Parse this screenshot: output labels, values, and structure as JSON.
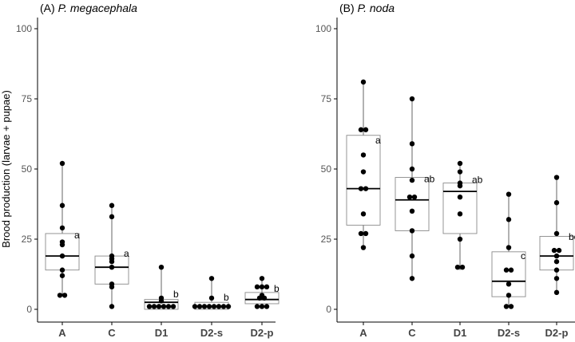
{
  "figure": {
    "ylabel": "Brood production (larvae + pupae)"
  },
  "chart_data": [
    {
      "type": "box",
      "title_prefix": "(A) ",
      "title_species": "P. megacephala",
      "ylabel": "Brood production (larvae + pupae)",
      "xlabel": "",
      "ylim": [
        -3,
        103
      ],
      "yticks": [
        0,
        25,
        50,
        75,
        100
      ],
      "categories": [
        "A",
        "C",
        "D1",
        "D2-s",
        "D2-p"
      ],
      "boxes": [
        {
          "q1": 14,
          "median": 19,
          "q3": 27,
          "low": 5,
          "high": 52,
          "points": [
            52,
            37,
            29,
            24,
            23,
            19,
            14,
            12,
            5,
            5
          ],
          "letter": "a"
        },
        {
          "q1": 9,
          "median": 15,
          "q3": 19,
          "low": 1,
          "high": 37,
          "points": [
            37,
            33,
            19,
            18,
            17,
            15,
            9,
            8,
            1
          ],
          "letter": "a"
        },
        {
          "q1": 0,
          "median": 2.5,
          "q3": 3.5,
          "low": 0,
          "high": 15,
          "points": [
            15,
            4,
            3,
            1,
            1,
            1,
            1,
            1,
            1
          ],
          "letter": "b"
        },
        {
          "q1": 0,
          "median": 1,
          "q3": 2.5,
          "low": 0,
          "high": 11,
          "points": [
            11,
            4,
            1,
            1,
            1,
            1,
            1,
            1,
            1,
            1
          ],
          "letter": "b"
        },
        {
          "q1": 2,
          "median": 3.5,
          "q3": 6,
          "low": 1,
          "high": 11,
          "points": [
            11,
            8,
            8,
            8,
            5,
            4,
            4,
            1,
            1,
            1
          ],
          "letter": "b"
        }
      ]
    },
    {
      "type": "box",
      "title_prefix": "(B) ",
      "title_species": "P. noda",
      "ylabel": "",
      "xlabel": "",
      "ylim": [
        -3,
        103
      ],
      "yticks": [
        0,
        25,
        50,
        75,
        100
      ],
      "categories": [
        "A",
        "C",
        "D1",
        "D2-s",
        "D2-p"
      ],
      "boxes": [
        {
          "q1": 30,
          "median": 43,
          "q3": 62,
          "low": 22,
          "high": 81,
          "points": [
            81,
            64,
            64,
            55,
            49,
            43,
            43,
            34,
            27,
            27,
            22
          ],
          "letter": "a"
        },
        {
          "q1": 28,
          "median": 39,
          "q3": 47,
          "low": 11,
          "high": 75,
          "points": [
            75,
            59,
            50,
            46,
            40,
            40,
            35,
            28,
            19,
            11
          ],
          "letter": "ab"
        },
        {
          "q1": 27,
          "median": 42,
          "q3": 45,
          "low": 14,
          "high": 52,
          "points": [
            52,
            49,
            45,
            44,
            40,
            34,
            25,
            15,
            15
          ],
          "letter": "ab"
        },
        {
          "q1": 4.5,
          "median": 10,
          "q3": 20.5,
          "low": 1,
          "high": 41,
          "points": [
            41,
            32,
            22,
            14,
            14,
            9,
            5,
            1,
            1
          ],
          "letter": "c"
        },
        {
          "q1": 14,
          "median": 19,
          "q3": 26,
          "low": 6,
          "high": 47,
          "points": [
            47,
            38,
            27,
            21,
            21,
            19,
            17,
            14,
            11,
            6
          ],
          "letter": "bc"
        }
      ]
    }
  ]
}
